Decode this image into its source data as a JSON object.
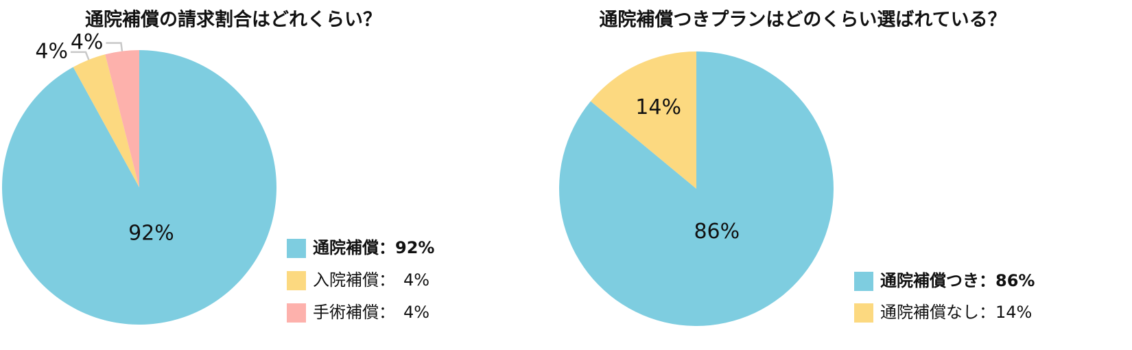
{
  "chart_data": [
    {
      "type": "pie",
      "title": "通院補償の請求割合はどれくらい？",
      "labels": [
        "通院補償：92%",
        "入院補償：　4%",
        "手術補償：　4%"
      ],
      "values": [
        92,
        4,
        4
      ],
      "value_labels": [
        "92%",
        "4%",
        "4%"
      ],
      "colors": [
        "#7ecde0",
        "#fcd980",
        "#fdb1ac"
      ]
    },
    {
      "type": "pie",
      "title": "通院補償つきプランはどのくらい選ばれている？",
      "labels": [
        "通院補償つき：86%",
        "通院補償なし：14%"
      ],
      "values": [
        86,
        14
      ],
      "value_labels": [
        "86%",
        "14%"
      ],
      "colors": [
        "#7ecde0",
        "#fcd980"
      ]
    }
  ]
}
